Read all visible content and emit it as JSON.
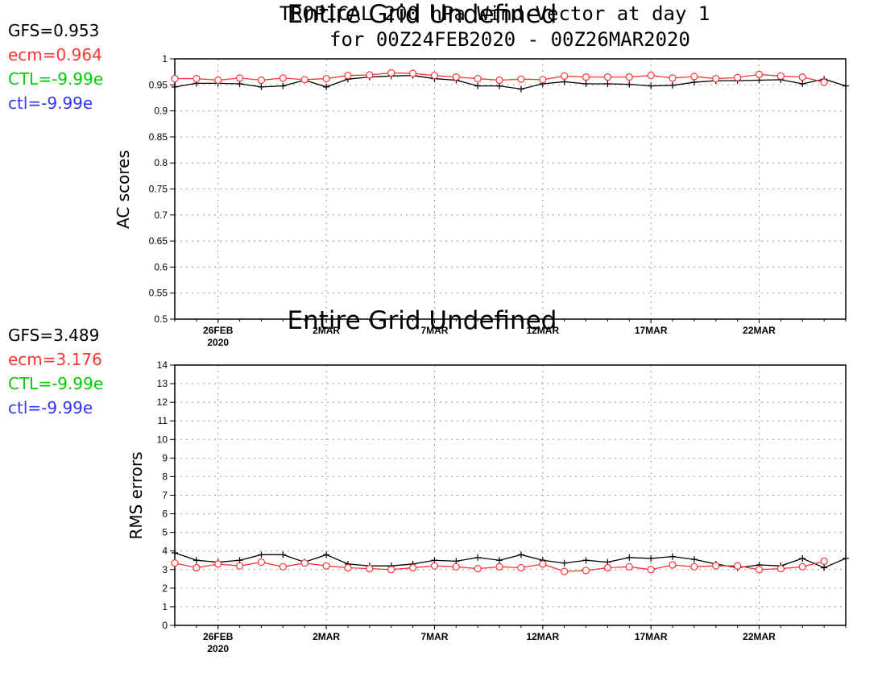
{
  "title": {
    "line1": "TROPICAL 200 hPa Wind-Vector at day 1",
    "line2": "for 00Z24FEB2020 - 00Z26MAR2020"
  },
  "undefined_label": "Entire Grid Undefined",
  "colors": {
    "gfs": "#000000",
    "ecm": "#ff3333",
    "ctl_upper": "#00cc00",
    "ctl_lower": "#3333ff"
  },
  "x_tick_labels": [
    "26FEB",
    "2MAR",
    "7MAR",
    "12MAR",
    "17MAR",
    "22MAR"
  ],
  "x_tick_year": "2020",
  "chart_data": [
    {
      "type": "line",
      "ylabel": "AC scores",
      "ylim": [
        0.5,
        1
      ],
      "yticks": [
        "0.5",
        "0.55",
        "0.6",
        "0.65",
        "0.7",
        "0.75",
        "0.8",
        "0.85",
        "0.9",
        "0.95",
        "1"
      ],
      "xlim": [
        "24FEB2020",
        "26MAR2020"
      ],
      "grid": true,
      "stats": [
        {
          "label": "GFS=0.953",
          "color": "#000000"
        },
        {
          "label": "ecm=0.964",
          "color": "#ff3333"
        },
        {
          "label": "CTL=-9.99e",
          "color": "#00cc00"
        },
        {
          "label": "ctl=-9.99e",
          "color": "#3333ff"
        }
      ],
      "x": [
        "24FEB",
        "25FEB",
        "26FEB",
        "27FEB",
        "28FEB",
        "29FEB",
        "1MAR",
        "2MAR",
        "3MAR",
        "4MAR",
        "5MAR",
        "6MAR",
        "7MAR",
        "8MAR",
        "9MAR",
        "10MAR",
        "11MAR",
        "12MAR",
        "13MAR",
        "14MAR",
        "15MAR",
        "16MAR",
        "17MAR",
        "18MAR",
        "19MAR",
        "20MAR",
        "21MAR",
        "22MAR",
        "23MAR",
        "24MAR",
        "25MAR",
        "26MAR"
      ],
      "series": [
        {
          "name": "GFS",
          "color": "#000000",
          "marker": "plus",
          "values": [
            0.946,
            0.953,
            0.953,
            0.952,
            0.946,
            0.948,
            0.959,
            0.946,
            0.961,
            0.965,
            0.967,
            0.968,
            0.962,
            0.959,
            0.948,
            0.948,
            0.942,
            0.952,
            0.956,
            0.952,
            0.952,
            0.951,
            0.948,
            0.949,
            0.955,
            0.958,
            0.958,
            0.959,
            0.96,
            0.952,
            0.961,
            0.948
          ]
        },
        {
          "name": "ecm",
          "color": "#ff3333",
          "marker": "circle",
          "values": [
            0.962,
            0.962,
            0.959,
            0.963,
            0.959,
            0.963,
            0.96,
            0.962,
            0.968,
            0.969,
            0.973,
            0.972,
            0.968,
            0.965,
            0.962,
            0.959,
            0.961,
            0.96,
            0.967,
            0.965,
            0.965,
            0.965,
            0.968,
            0.963,
            0.966,
            0.962,
            0.964,
            0.97,
            0.967,
            0.965,
            0.955,
            null
          ]
        }
      ]
    },
    {
      "type": "line",
      "ylabel": "RMS errors",
      "ylim": [
        0,
        14
      ],
      "yticks": [
        "0",
        "1",
        "2",
        "3",
        "4",
        "5",
        "6",
        "7",
        "8",
        "9",
        "10",
        "11",
        "12",
        "13",
        "14"
      ],
      "xlim": [
        "24FEB2020",
        "26MAR2020"
      ],
      "grid": true,
      "stats": [
        {
          "label": "GFS=3.489",
          "color": "#000000"
        },
        {
          "label": "ecm=3.176",
          "color": "#ff3333"
        },
        {
          "label": "CTL=-9.99e",
          "color": "#00cc00"
        },
        {
          "label": "ctl=-9.99e",
          "color": "#3333ff"
        }
      ],
      "x": [
        "24FEB",
        "25FEB",
        "26FEB",
        "27FEB",
        "28FEB",
        "29FEB",
        "1MAR",
        "2MAR",
        "3MAR",
        "4MAR",
        "5MAR",
        "6MAR",
        "7MAR",
        "8MAR",
        "9MAR",
        "10MAR",
        "11MAR",
        "12MAR",
        "13MAR",
        "14MAR",
        "15MAR",
        "16MAR",
        "17MAR",
        "18MAR",
        "19MAR",
        "20MAR",
        "21MAR",
        "22MAR",
        "23MAR",
        "24MAR",
        "25MAR",
        "26MAR"
      ],
      "series": [
        {
          "name": "GFS",
          "color": "#000000",
          "marker": "plus",
          "values": [
            3.9,
            3.5,
            3.4,
            3.5,
            3.8,
            3.8,
            3.4,
            3.8,
            3.3,
            3.2,
            3.2,
            3.3,
            3.5,
            3.45,
            3.65,
            3.5,
            3.8,
            3.5,
            3.35,
            3.5,
            3.4,
            3.65,
            3.6,
            3.7,
            3.55,
            3.3,
            3.1,
            3.25,
            3.2,
            3.6,
            3.1,
            3.6
          ]
        },
        {
          "name": "ecm",
          "color": "#ff3333",
          "marker": "circle",
          "values": [
            3.35,
            3.1,
            3.3,
            3.2,
            3.4,
            3.15,
            3.35,
            3.2,
            3.1,
            3.05,
            3.0,
            3.1,
            3.2,
            3.15,
            3.05,
            3.15,
            3.1,
            3.3,
            2.9,
            2.95,
            3.1,
            3.15,
            3.0,
            3.25,
            3.15,
            3.2,
            3.2,
            3.0,
            3.05,
            3.15,
            3.45,
            null
          ]
        }
      ]
    }
  ]
}
